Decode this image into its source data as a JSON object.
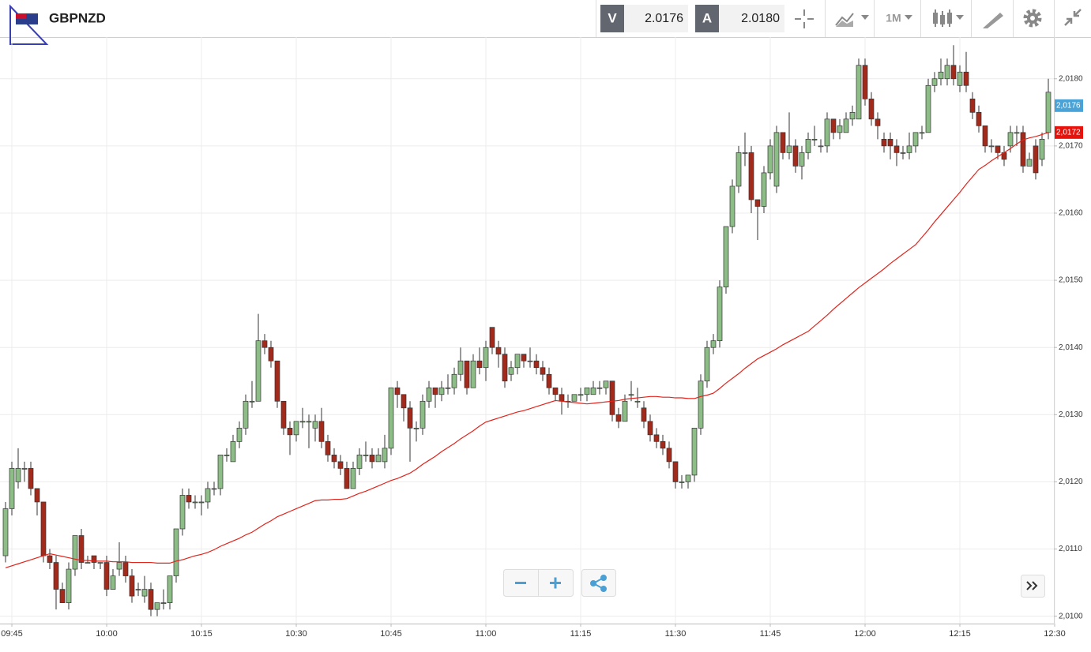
{
  "header": {
    "symbol": "GBPNZD",
    "sell_label": "V",
    "sell_price": "2.0176",
    "buy_label": "A",
    "buy_price": "2.0180",
    "timeframe": "1M"
  },
  "chart_data": {
    "type": "candlestick",
    "categories": [
      null,
      "09:45",
      null,
      null,
      null,
      null,
      null,
      null,
      null,
      null,
      null,
      null,
      null,
      null,
      null,
      null,
      "10:00",
      null,
      null,
      null,
      null,
      null,
      null,
      null,
      null,
      null,
      null,
      null,
      null,
      null,
      null,
      "10:15",
      null,
      null,
      null,
      null,
      null,
      null,
      null,
      null,
      null,
      null,
      null,
      null,
      null,
      null,
      "10:30",
      null,
      null,
      null,
      null,
      null,
      null,
      null,
      null,
      null,
      null,
      null,
      null,
      null,
      null,
      "10:45",
      null,
      null,
      null,
      null,
      null,
      null,
      null,
      null,
      null,
      null,
      null,
      null,
      null,
      null,
      "11:00",
      null,
      null,
      null,
      null,
      null,
      null,
      null,
      null,
      null,
      null,
      null,
      null,
      null,
      null,
      "11:15",
      null,
      null,
      null,
      null,
      null,
      null,
      null,
      null,
      null,
      null,
      null,
      null,
      null,
      null,
      "11:30",
      null,
      null,
      null,
      null,
      null,
      null,
      null,
      null,
      null,
      null,
      null,
      null,
      null,
      null,
      "11:45",
      null,
      null,
      null,
      null,
      null,
      null,
      null,
      null,
      null,
      null,
      null,
      null,
      null,
      null,
      "12:00",
      null,
      null,
      null,
      null,
      null,
      null,
      null,
      null,
      null,
      null,
      null,
      null,
      null,
      null,
      "12:15",
      null,
      null,
      null,
      null,
      null,
      null,
      null,
      null,
      null,
      null,
      null,
      null,
      null,
      null,
      "12:30"
    ],
    "open": [
      2.0109,
      2.0116,
      2.012,
      2.0122,
      2.0122,
      2.0119,
      2.0117,
      2.0109,
      2.0108,
      2.0104,
      2.0102,
      2.0107,
      2.0112,
      2.0108,
      2.0109,
      2.0108,
      2.0108,
      2.0104,
      2.0107,
      2.0108,
      2.0106,
      2.0104,
      2.0103,
      2.0104,
      2.0101,
      2.0102,
      2.0102,
      2.0106,
      2.0113,
      2.0118,
      2.0117,
      2.0117,
      2.0117,
      2.0119,
      2.0119,
      2.0124,
      2.0123,
      2.0126,
      2.0128,
      2.0132,
      2.0132,
      2.0141,
      2.014,
      2.0138,
      2.0132,
      2.0128,
      2.0127,
      2.0129,
      2.0129,
      2.0128,
      2.0129,
      2.0126,
      2.0124,
      2.0123,
      2.0122,
      2.0119,
      2.0122,
      2.0124,
      2.0124,
      2.0123,
      2.0123,
      2.0125,
      2.0134,
      2.0133,
      2.0131,
      2.0128,
      2.0128,
      2.0132,
      2.0134,
      2.0133,
      2.0134,
      2.0134,
      2.0136,
      2.0138,
      2.0134,
      2.0138,
      2.0137,
      2.0143,
      2.014,
      2.0139,
      2.0136,
      2.0137,
      2.0139,
      2.0138,
      2.0138,
      2.0137,
      2.0136,
      2.0134,
      2.0133,
      2.0132,
      2.0132,
      2.0133,
      2.0133,
      2.0133,
      2.0134,
      2.0134,
      2.0135,
      2.013,
      2.0129,
      2.0133,
      2.0132,
      2.0131,
      2.0129,
      2.0127,
      2.0126,
      2.0125,
      2.0123,
      2.012,
      2.012,
      2.0121,
      2.0128,
      2.0135,
      2.014,
      2.0141,
      2.0149,
      2.0158,
      2.0164,
      2.0169,
      2.0169,
      2.0162,
      2.0161,
      2.0166,
      2.0164,
      2.0172,
      2.0169,
      2.017,
      2.0167,
      2.0169,
      2.0171,
      2.017,
      2.017,
      2.0174,
      2.0172,
      2.0172,
      2.0174,
      2.0174,
      2.0182,
      2.0177,
      2.0174,
      2.0171,
      2.0171,
      2.017,
      2.0169,
      2.0169,
      2.017,
      2.0172,
      2.0172,
      2.0179,
      2.018,
      2.018,
      2.0182,
      2.0179,
      2.0181,
      2.0177,
      2.0175,
      2.0173,
      2.017,
      2.017,
      2.0169,
      2.017,
      2.0172,
      2.0172,
      2.0167,
      2.017,
      2.0168,
      2.0172,
      null
    ],
    "high": [
      2.0117,
      2.0123,
      2.0125,
      2.0123,
      2.0123,
      2.0119,
      2.0117,
      2.011,
      2.0109,
      2.0105,
      2.0108,
      2.0112,
      2.0113,
      2.0109,
      2.0109,
      2.0108,
      2.0109,
      2.0107,
      2.0111,
      2.0109,
      2.0107,
      2.0105,
      2.0106,
      2.0105,
      2.0102,
      2.0104,
      2.0106,
      2.0113,
      2.0119,
      2.0119,
      2.0118,
      2.0118,
      2.012,
      2.012,
      2.0124,
      2.0125,
      2.0127,
      2.0129,
      2.0133,
      2.0135,
      2.0145,
      2.0142,
      2.0141,
      2.0138,
      2.0132,
      2.0129,
      2.0129,
      2.0131,
      2.013,
      2.013,
      2.0131,
      2.0127,
      2.0125,
      2.0124,
      2.0123,
      2.0123,
      2.0125,
      2.0126,
      2.0125,
      2.0125,
      2.0127,
      2.0134,
      2.0135,
      2.0133,
      2.0132,
      2.0129,
      2.0133,
      2.0135,
      2.0134,
      2.0135,
      2.0136,
      2.0137,
      2.014,
      2.0138,
      2.0139,
      2.014,
      2.0141,
      2.0143,
      2.0141,
      2.014,
      2.0138,
      2.0139,
      2.0139,
      2.014,
      2.0139,
      2.0138,
      2.0137,
      2.0134,
      2.0134,
      2.0133,
      2.0133,
      2.0134,
      2.0134,
      2.0135,
      2.0135,
      2.0135,
      2.0135,
      2.0131,
      2.0133,
      2.0135,
      2.0134,
      2.0132,
      2.013,
      2.0128,
      2.0127,
      2.0126,
      2.0123,
      2.0121,
      2.0121,
      2.0128,
      2.0136,
      2.0141,
      2.0142,
      2.015,
      2.0158,
      2.0165,
      2.017,
      2.0172,
      2.017,
      2.0162,
      2.0167,
      2.0171,
      2.0173,
      2.0172,
      2.0175,
      2.0171,
      2.017,
      2.0172,
      2.0173,
      2.0171,
      2.0175,
      2.0174,
      2.0174,
      2.0175,
      2.0176,
      2.0183,
      2.0183,
      2.0178,
      2.0175,
      2.0172,
      2.0172,
      2.0171,
      2.017,
      2.0172,
      2.0172,
      2.0173,
      2.018,
      2.0181,
      2.0183,
      2.0183,
      2.0185,
      2.0182,
      2.0184,
      2.0178,
      2.0176,
      2.0173,
      2.0171,
      2.017,
      2.017,
      2.0173,
      2.0173,
      2.0173,
      2.0169,
      2.0171,
      2.0172,
      2.018,
      null
    ],
    "low": [
      2.0108,
      2.0115,
      2.0119,
      2.012,
      2.0118,
      2.0115,
      2.0108,
      2.0107,
      2.0101,
      2.0102,
      2.0101,
      2.0106,
      2.0107,
      2.0108,
      2.0107,
      2.0107,
      2.0103,
      2.0104,
      2.0106,
      2.0105,
      2.0102,
      2.0103,
      2.0102,
      2.01,
      2.01,
      2.0101,
      2.0101,
      2.0105,
      2.0112,
      2.0116,
      2.0116,
      2.0115,
      2.0116,
      2.0118,
      2.0118,
      2.0123,
      2.0123,
      2.0125,
      2.0127,
      2.0131,
      2.0132,
      2.0139,
      2.0137,
      2.0131,
      2.0127,
      2.0124,
      2.0126,
      2.0128,
      2.0125,
      2.0126,
      2.0125,
      2.0123,
      2.0122,
      2.0121,
      2.0119,
      2.0119,
      2.0121,
      2.0123,
      2.0122,
      2.0123,
      2.0122,
      2.0124,
      2.0131,
      2.0129,
      2.0123,
      2.0126,
      2.0127,
      2.0131,
      2.0131,
      2.0132,
      2.0133,
      2.0133,
      2.0135,
      2.0133,
      2.0134,
      2.0136,
      2.0135,
      2.0139,
      2.0137,
      2.0134,
      2.0135,
      2.0136,
      2.0137,
      2.0137,
      2.0136,
      2.0135,
      2.0133,
      2.0132,
      2.013,
      2.0131,
      2.0132,
      2.0132,
      2.0132,
      2.0133,
      2.0133,
      2.0133,
      2.0129,
      2.0128,
      2.0129,
      2.0132,
      2.0131,
      2.0128,
      2.0126,
      2.0125,
      2.0124,
      2.0122,
      2.0119,
      2.0119,
      2.0119,
      2.012,
      2.0127,
      2.0134,
      2.0139,
      2.014,
      2.0148,
      2.0157,
      2.0163,
      2.0167,
      2.016,
      2.0156,
      2.016,
      2.0165,
      2.0163,
      2.0168,
      2.0168,
      2.0166,
      2.0165,
      2.0168,
      2.017,
      2.0169,
      2.0169,
      2.0171,
      2.0171,
      2.0172,
      2.0173,
      2.0174,
      2.0176,
      2.0173,
      2.0171,
      2.0169,
      2.0168,
      2.0167,
      2.0168,
      2.0168,
      2.0169,
      2.0171,
      2.0172,
      2.0178,
      2.0179,
      2.0179,
      2.0179,
      2.0178,
      2.0178,
      2.0174,
      2.0172,
      2.0169,
      2.0169,
      2.0168,
      2.0167,
      2.0169,
      2.017,
      2.0166,
      2.0167,
      2.0165,
      2.0167,
      2.0171,
      null
    ],
    "close": [
      2.0116,
      2.0122,
      2.0122,
      2.0122,
      2.0119,
      2.0117,
      2.0109,
      2.0108,
      2.0104,
      2.0102,
      2.0107,
      2.0112,
      2.0108,
      2.0108,
      2.0108,
      2.0108,
      2.0104,
      2.0106,
      2.0108,
      2.0106,
      2.0103,
      2.0104,
      2.0104,
      2.0101,
      2.0102,
      2.0102,
      2.0106,
      2.0113,
      2.0118,
      2.0117,
      2.0117,
      2.0117,
      2.0119,
      2.0119,
      2.0124,
      2.0124,
      2.0126,
      2.0128,
      2.0132,
      2.0132,
      2.0141,
      2.014,
      2.0138,
      2.0132,
      2.0128,
      2.0127,
      2.0129,
      2.0129,
      2.0129,
      2.0129,
      2.0126,
      2.0124,
      2.0123,
      2.0122,
      2.0119,
      2.0122,
      2.0124,
      2.0124,
      2.0123,
      2.0124,
      2.0125,
      2.0134,
      2.0133,
      2.0131,
      2.0128,
      2.0128,
      2.0132,
      2.0134,
      2.0133,
      2.0134,
      2.0134,
      2.0136,
      2.0138,
      2.0134,
      2.0138,
      2.0137,
      2.014,
      2.014,
      2.0139,
      2.0135,
      2.0137,
      2.0139,
      2.0138,
      2.0138,
      2.0137,
      2.0136,
      2.0134,
      2.0133,
      2.0132,
      2.0132,
      2.0133,
      2.0133,
      2.0134,
      2.0134,
      2.0134,
      2.0135,
      2.013,
      2.0129,
      2.0132,
      2.0133,
      2.0132,
      2.0129,
      2.0127,
      2.0126,
      2.0125,
      2.0123,
      2.012,
      2.012,
      2.0121,
      2.0128,
      2.0135,
      2.014,
      2.0141,
      2.0149,
      2.0158,
      2.0164,
      2.0169,
      2.0169,
      2.0162,
      2.0161,
      2.0166,
      2.017,
      2.0172,
      2.0169,
      2.017,
      2.0167,
      2.0169,
      2.0171,
      2.0171,
      2.017,
      2.0174,
      2.0172,
      2.0173,
      2.0174,
      2.0175,
      2.0182,
      2.0177,
      2.0174,
      2.0173,
      2.017,
      2.017,
      2.0169,
      2.0169,
      2.017,
      2.0172,
      2.0172,
      2.0179,
      2.018,
      2.0181,
      2.0182,
      2.018,
      2.0181,
      2.0179,
      2.0175,
      2.0173,
      2.017,
      2.017,
      2.0169,
      2.0168,
      2.0172,
      2.0172,
      2.0167,
      2.0168,
      2.0166,
      2.0171,
      2.0178,
      null
    ],
    "ma": [
      2.01072,
      2.01075,
      2.01078,
      2.01081,
      2.01084,
      2.01087,
      2.0109,
      2.01093,
      2.01091,
      2.01089,
      2.01087,
      2.01085,
      2.01083,
      2.01083,
      2.01082,
      2.01082,
      2.01082,
      2.01081,
      2.01081,
      2.01081,
      2.0108,
      2.0108,
      2.0108,
      2.0108,
      2.01079,
      2.01079,
      2.01079,
      2.01082,
      2.01084,
      2.01087,
      2.0109,
      2.01092,
      2.01095,
      2.01099,
      2.01104,
      2.01108,
      2.01112,
      2.01116,
      2.01121,
      2.01125,
      2.01131,
      2.01137,
      2.01142,
      2.01148,
      2.01152,
      2.01156,
      2.0116,
      2.01164,
      2.01168,
      2.01172,
      2.01173,
      2.01173,
      2.01174,
      2.01174,
      2.01175,
      2.01179,
      2.01183,
      2.01186,
      2.0119,
      2.01194,
      2.01198,
      2.01202,
      2.01205,
      2.01209,
      2.01213,
      2.01219,
      2.01226,
      2.01232,
      2.01238,
      2.01245,
      2.01251,
      2.01257,
      2.01264,
      2.0127,
      2.01276,
      2.01283,
      2.01289,
      2.01292,
      2.01295,
      2.01298,
      2.01301,
      2.01304,
      2.01306,
      2.01309,
      2.01312,
      2.01315,
      2.01318,
      2.01321,
      2.0132,
      2.01319,
      2.01318,
      2.01317,
      2.01316,
      2.01317,
      2.01318,
      2.01319,
      2.0132,
      2.01321,
      2.01323,
      2.01324,
      2.01325,
      2.01326,
      2.01327,
      2.01327,
      2.01326,
      2.01326,
      2.01325,
      2.01325,
      2.01324,
      2.01324,
      2.01327,
      2.01329,
      2.01332,
      2.01339,
      2.01347,
      2.01354,
      2.01361,
      2.01369,
      2.01376,
      2.01383,
      2.01388,
      2.01393,
      2.01398,
      2.01404,
      2.01409,
      2.01414,
      2.01419,
      2.01424,
      2.01432,
      2.0144,
      2.01448,
      2.01457,
      2.01465,
      2.01473,
      2.01481,
      2.01489,
      2.01496,
      2.01503,
      2.0151,
      2.01517,
      2.01525,
      2.01532,
      2.01539,
      2.01546,
      2.01553,
      2.01564,
      2.01575,
      2.01587,
      2.01598,
      2.01609,
      2.0162,
      2.01631,
      2.01643,
      2.01654,
      2.01665,
      2.01671,
      2.01678,
      2.01684,
      2.0169,
      2.01696,
      2.01703,
      2.01709,
      2.01712,
      2.01714,
      2.01717,
      2.0172,
      null
    ],
    "up_color": "#8dbd86",
    "down_color": "#a3291a",
    "ma_color": "#e0241c",
    "ylim": [
      2.00989,
      2.01862
    ],
    "yticks": [
      {
        "value": 2.01,
        "label": "2,0100"
      },
      {
        "value": 2.011,
        "label": "2,0110"
      },
      {
        "value": 2.012,
        "label": "2,0120"
      },
      {
        "value": 2.013,
        "label": "2,0130"
      },
      {
        "value": 2.014,
        "label": "2,0140"
      },
      {
        "value": 2.015,
        "label": "2,0150"
      },
      {
        "value": 2.016,
        "label": "2,0160"
      },
      {
        "value": 2.017,
        "label": "2,0170"
      },
      {
        "value": 2.018,
        "label": "2,0180"
      }
    ],
    "grid": true,
    "price_markers": [
      {
        "value": 2.0176,
        "label": "2,0176",
        "color": "#4aa3d6"
      },
      {
        "value": 2.0172,
        "label": "2,0172",
        "color": "#e8120c"
      }
    ]
  }
}
